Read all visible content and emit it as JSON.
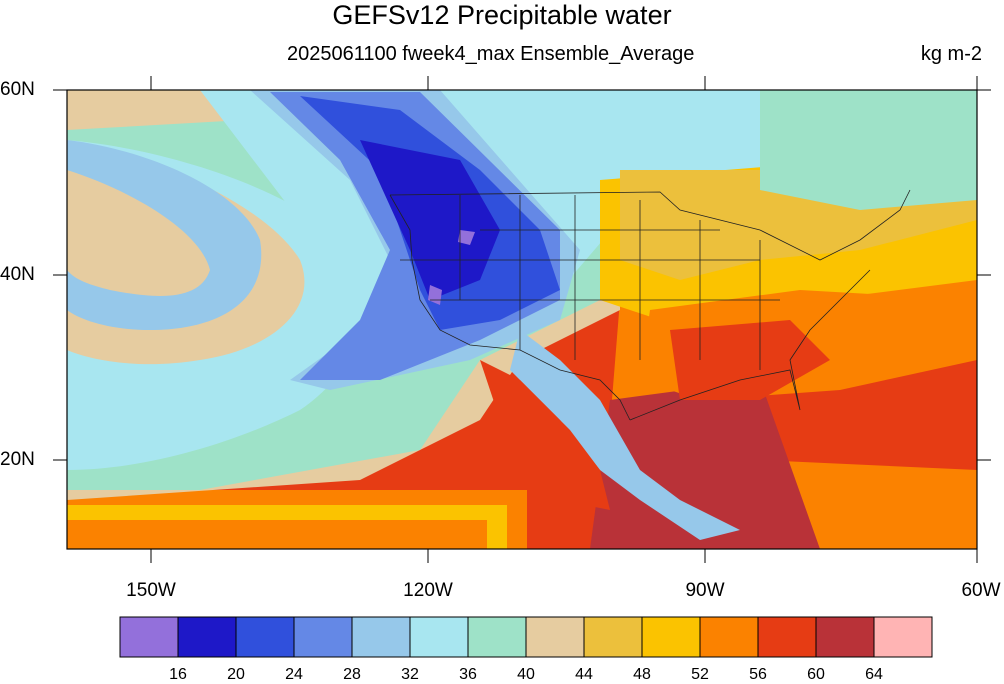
{
  "title": "GEFSv12 Precipitable water",
  "subtitle": "2025061100 fweek4_max Ensemble_Average",
  "units": "kg m-2",
  "map": {
    "lat_labels": [
      "60N",
      "40N",
      "20N"
    ],
    "lon_labels": [
      "150W",
      "120W",
      "90W",
      "60W"
    ],
    "lat_range": [
      10,
      60
    ],
    "lon_range": [
      -160,
      -60
    ]
  },
  "colorbar": {
    "levels": [
      "16",
      "20",
      "24",
      "28",
      "32",
      "36",
      "40",
      "44",
      "48",
      "52",
      "56",
      "60",
      "64"
    ],
    "colors": [
      "#9370db",
      "#1e18c8",
      "#3050dc",
      "#6488e6",
      "#96c8ea",
      "#a8e6f0",
      "#9ee2c8",
      "#e6cca0",
      "#ecc03c",
      "#fbc300",
      "#fb8200",
      "#e63c14",
      "#b93238",
      "#ffb4b4"
    ]
  }
}
